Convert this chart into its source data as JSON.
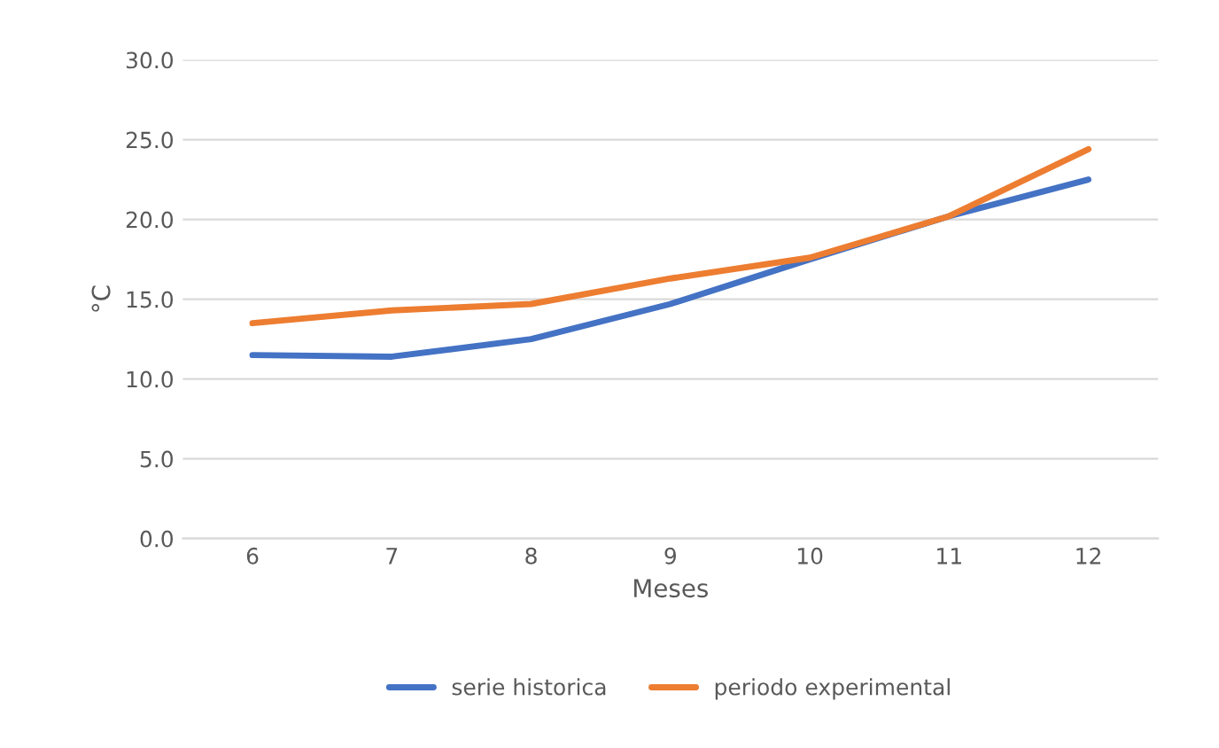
{
  "chart_data": {
    "type": "line",
    "xlabel": "Meses",
    "ylabel": "°C",
    "categories": [
      "6",
      "7",
      "8",
      "9",
      "10",
      "11",
      "12"
    ],
    "series": [
      {
        "name": "serie historica",
        "color": "#4472c4",
        "values": [
          11.5,
          11.4,
          12.5,
          14.7,
          17.5,
          20.2,
          22.5
        ]
      },
      {
        "name": "periodo experimental",
        "color": "#ed7d31",
        "values": [
          13.5,
          14.3,
          14.7,
          16.3,
          17.6,
          20.2,
          24.4
        ]
      }
    ],
    "ylim": [
      0,
      30
    ],
    "yticks": [
      {
        "value": 0,
        "label": "0.0"
      },
      {
        "value": 5,
        "label": "5.0"
      },
      {
        "value": 10,
        "label": "10.0"
      },
      {
        "value": 15,
        "label": "15.0"
      },
      {
        "value": 20,
        "label": "20.0"
      },
      {
        "value": 25,
        "label": "25.0"
      },
      {
        "value": 30,
        "label": "30.0"
      }
    ],
    "grid": "y",
    "legend": "bottom",
    "marker": "none",
    "line_style": "solid"
  }
}
